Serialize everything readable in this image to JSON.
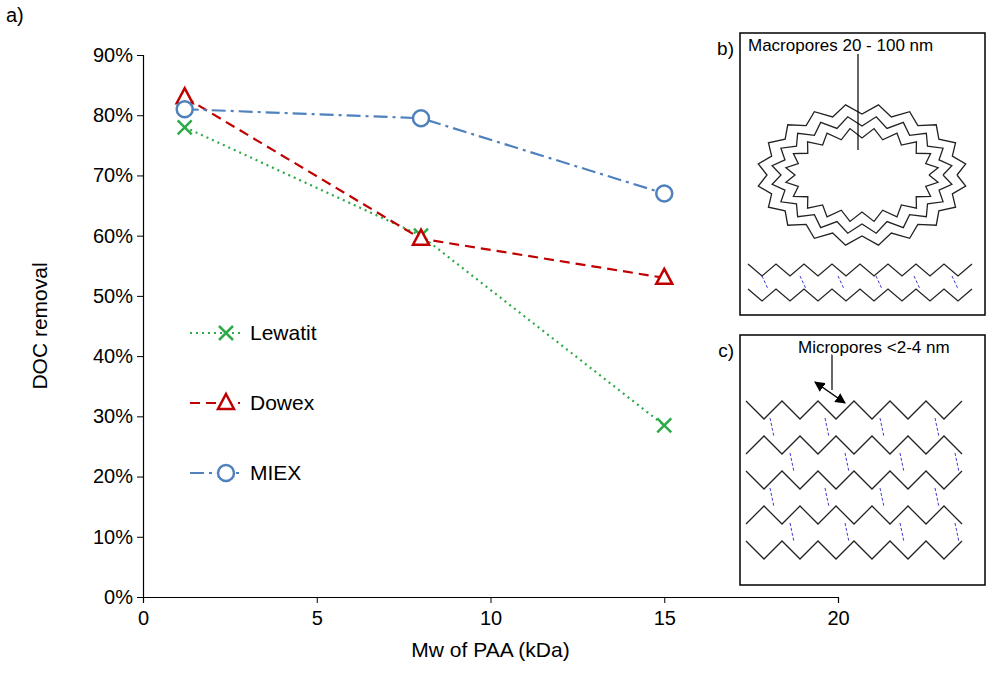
{
  "chart_data": {
    "type": "line",
    "x_label": "Mw of PAA (kDa)",
    "y_label": "DOC removal",
    "x": [
      1.2,
      8,
      15
    ],
    "series": [
      {
        "name": "Lewatit",
        "color": "#2eaa4a",
        "marker": "x",
        "line_style": "dotted",
        "values": [
          78,
          60,
          28.5
        ]
      },
      {
        "name": "Dowex",
        "color": "#c00000",
        "marker": "triangle",
        "line_style": "dashed",
        "values": [
          83,
          59.5,
          53
        ]
      },
      {
        "name": "MIEX",
        "color": "#4f81bd",
        "marker": "circle",
        "line_style": "dashdot",
        "values": [
          81,
          79.5,
          67
        ]
      }
    ],
    "xlim": [
      0,
      20
    ],
    "xticks": [
      0,
      5,
      10,
      15,
      20
    ],
    "ylim": [
      0,
      90
    ],
    "yticks": [
      {
        "value": 0,
        "label": "0%"
      },
      {
        "value": 10,
        "label": "10%"
      },
      {
        "value": 20,
        "label": "20%"
      },
      {
        "value": 30,
        "label": "30%"
      },
      {
        "value": 40,
        "label": "40%"
      },
      {
        "value": 50,
        "label": "50%"
      },
      {
        "value": 60,
        "label": "60%"
      },
      {
        "value": 70,
        "label": "70%"
      },
      {
        "value": 80,
        "label": "80%"
      },
      {
        "value": 90,
        "label": "90%"
      }
    ],
    "grid": false,
    "legend": "left"
  },
  "figure": {
    "label": "a)",
    "insets": [
      {
        "letter": "b)",
        "label": "Macropores 20 - 100 nm"
      },
      {
        "letter": "c)",
        "label": "Micropores <2-4 nm"
      }
    ]
  }
}
